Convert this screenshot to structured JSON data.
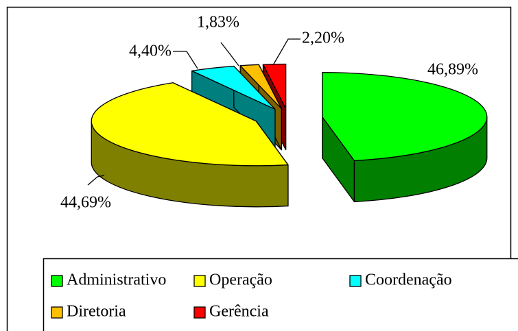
{
  "chart_data": {
    "type": "pie",
    "categories": [
      "Administrativo",
      "Operação",
      "Coordenação",
      "Diretoria",
      "Gerência"
    ],
    "values": [
      46.89,
      44.69,
      4.4,
      1.83,
      2.2
    ],
    "value_labels": [
      "46,89%",
      "44,69%",
      "4,40%",
      "1,83%",
      "2,20%"
    ],
    "colors": [
      "#00ff00",
      "#ffff00",
      "#00ffff",
      "#ffc000",
      "#ff0000"
    ],
    "legend": "bottom"
  }
}
